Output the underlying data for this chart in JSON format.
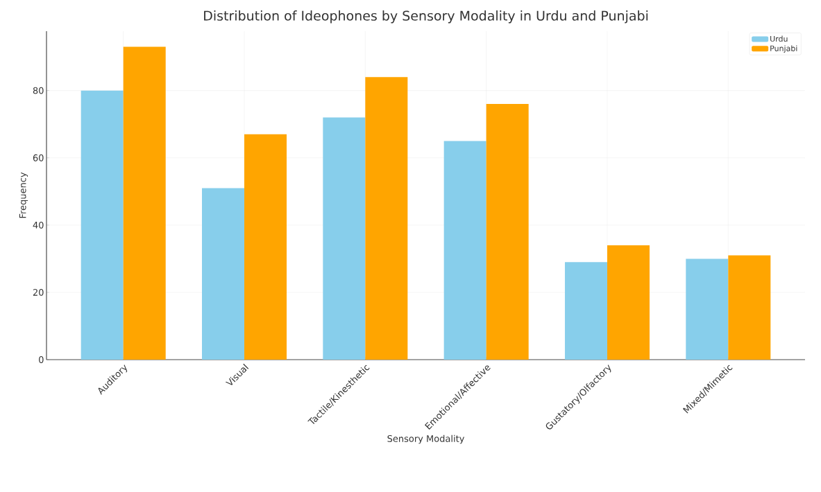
{
  "chart_data": {
    "type": "bar",
    "title": "Distribution of Ideophones by Sensory Modality in Urdu and Punjabi",
    "xlabel": "Sensory Modality",
    "ylabel": "Frequency",
    "categories": [
      "Auditory",
      "Visual",
      "Tactile/Kinesthetic",
      "Emotional/Affective",
      "Gustatory/Olfactory",
      "Mixed/Mimetic"
    ],
    "series": [
      {
        "name": "Urdu",
        "color": "#87ceeb",
        "values": [
          80,
          51,
          72,
          65,
          29,
          30
        ]
      },
      {
        "name": "Punjabi",
        "color": "#ffa500",
        "values": [
          93,
          67,
          84,
          76,
          34,
          31
        ]
      }
    ],
    "ylim": [
      0,
      97.65
    ],
    "yticks": [
      0,
      20,
      40,
      60,
      80
    ],
    "grid": true,
    "legend": "top right"
  }
}
